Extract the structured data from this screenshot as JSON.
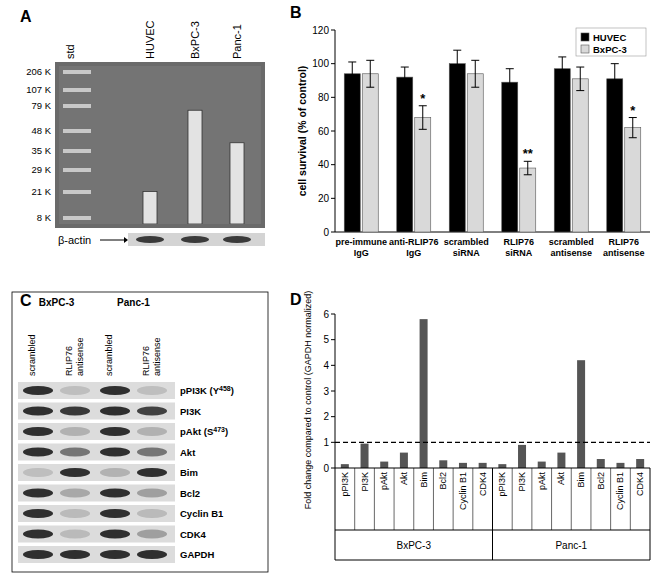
{
  "chart_data": [
    {
      "panel": "A",
      "type": "bar",
      "ladder_label": "std",
      "ladder": [
        "206 K",
        "107 K",
        "79 K",
        "48 K",
        "35 K",
        "29 K",
        "21 K",
        "8 K"
      ],
      "categories": [
        "HUVEC",
        "BxPC-3",
        "Panc-1"
      ],
      "values": [
        1,
        3.5,
        2.5
      ],
      "color": "#e3e3e3",
      "ylim": [
        0,
        4
      ],
      "tick_labels": "x",
      "loading_control": "β-actin"
    },
    {
      "panel": "B",
      "type": "bar",
      "y_label": "cell survival (% of control)",
      "categories": [
        "pre-immune IgG",
        "anti-RLIP76 IgG",
        "scrambled siRNA",
        "RLIP76 siRNA",
        "scrambled antisense",
        "RLIP76 antisense"
      ],
      "series": [
        {
          "name": "HUVEC",
          "color": "#000000",
          "values": [
            94,
            92,
            100,
            89,
            97,
            91
          ],
          "errors": [
            7,
            6,
            8,
            8,
            7,
            9
          ]
        },
        {
          "name": "BxPC-3",
          "color": "#d9d9d9",
          "values": [
            94,
            68,
            94,
            38,
            91,
            62
          ],
          "errors": [
            8,
            7,
            8,
            4,
            7,
            6
          ]
        }
      ],
      "annotations": [
        {
          "text": "*",
          "category": 1,
          "series": 1
        },
        {
          "text": "**",
          "category": 3,
          "series": 1
        },
        {
          "text": "*",
          "category": 5,
          "series": 1
        }
      ],
      "ylim": [
        0,
        120
      ],
      "yticks": [
        0,
        20,
        40,
        60,
        80,
        100,
        120
      ],
      "legend": "top-right",
      "grid": false
    },
    {
      "panel": "D",
      "type": "bar",
      "y_label": "Fold change compared to control (GAPDH normalized)",
      "categories": [
        "pPI3K",
        "PI3K",
        "pAkt",
        "Akt",
        "Bim",
        "Bcl2",
        "Cyclin B1",
        "CDK4"
      ],
      "series": [
        {
          "name": "BxPC-3",
          "values": [
            0.15,
            0.95,
            0.25,
            0.6,
            5.8,
            0.3,
            0.2,
            0.2
          ]
        },
        {
          "name": "Panc-1",
          "values": [
            0.15,
            0.9,
            0.25,
            0.6,
            4.2,
            0.35,
            0.2,
            0.35
          ]
        }
      ],
      "color": "#555555",
      "reference": {
        "value": 1,
        "line_style": "dashed"
      },
      "ylim": [
        0,
        6
      ],
      "yticks": [
        0,
        1,
        2,
        3,
        4,
        5,
        6
      ],
      "grid": false
    }
  ],
  "panel_c": {
    "panel": "C",
    "cell_lines": [
      "BxPC-3",
      "Panc-1"
    ],
    "lanes": [
      "scrambled",
      "RLIP76 antisense"
    ],
    "proteins": [
      {
        "name": "pPI3K (Y",
        "sup": "458",
        "end": ")"
      },
      {
        "name": "PI3K"
      },
      {
        "name": "pAkt (S",
        "sup": "473",
        "end": ")"
      },
      {
        "name": "Akt"
      },
      {
        "name": "Bim"
      },
      {
        "name": "Bcl2"
      },
      {
        "name": "Cyclin B1"
      },
      {
        "name": "CDK4"
      },
      {
        "name": "GAPDH"
      }
    ]
  }
}
